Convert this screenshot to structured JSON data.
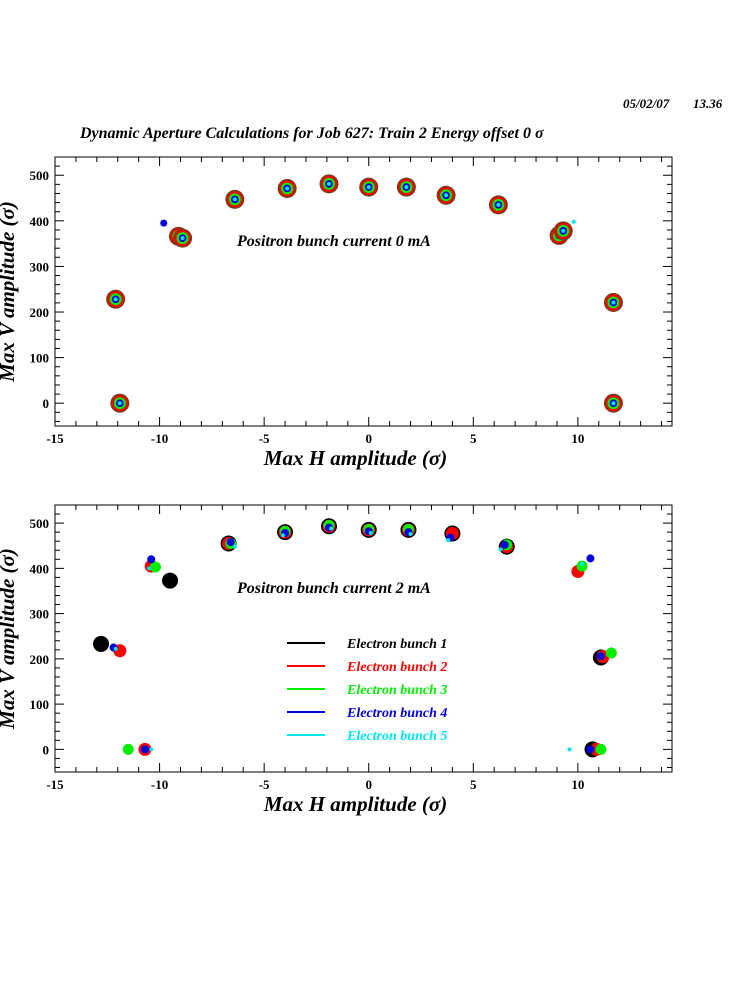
{
  "header": {
    "date": "05/02/07",
    "time": "13.36",
    "title": "Dynamic Aperture Calculations for Job 627:  Train 2   Energy offset  0 σ"
  },
  "colors": {
    "bunch_1": "#000000",
    "bunch_2": "#ff0000",
    "bunch_3": "#00ee00",
    "bunch_4": "#0000dd",
    "bunch_5": "#00e5ee",
    "bunch_halo": "#7a3a16"
  },
  "chart_data": [
    {
      "type": "scatter",
      "note": "Positron bunch current  0 mA",
      "xlabel": "Max H amplitude (σ)",
      "ylabel": "Max V amplitude (σ)",
      "xlim": [
        -15,
        14.5
      ],
      "ylim": [
        -50,
        540
      ],
      "xticks": [
        -15,
        -10,
        -5,
        0,
        5,
        10
      ],
      "yticks": [
        0,
        100,
        200,
        300,
        400,
        500
      ],
      "grid": false,
      "legend": [],
      "series": [
        {
          "bunch": 1,
          "points": [
            [
              -12.1,
              228
            ],
            [
              -11.9,
              0
            ],
            [
              -9.1,
              366
            ],
            [
              -8.9,
              362
            ],
            [
              -6.4,
              447
            ],
            [
              -3.9,
              471
            ],
            [
              -1.9,
              481
            ],
            [
              0.0,
              474
            ],
            [
              1.8,
              474
            ],
            [
              3.7,
              456
            ],
            [
              6.2,
              435
            ],
            [
              9.1,
              368
            ],
            [
              9.3,
              378
            ],
            [
              11.7,
              221
            ],
            [
              11.7,
              0
            ]
          ]
        },
        {
          "bunch": 2,
          "points": [
            [
              -12.1,
              228
            ],
            [
              -11.9,
              0
            ],
            [
              -9.1,
              366
            ],
            [
              -8.9,
              362
            ],
            [
              -6.4,
              447
            ],
            [
              -3.9,
              471
            ],
            [
              -1.9,
              481
            ],
            [
              0.0,
              474
            ],
            [
              1.8,
              474
            ],
            [
              3.7,
              456
            ],
            [
              6.2,
              435
            ],
            [
              9.1,
              368
            ],
            [
              9.3,
              378
            ],
            [
              11.7,
              221
            ],
            [
              11.7,
              0
            ]
          ]
        },
        {
          "bunch": 3,
          "points": [
            [
              -12.1,
              228
            ],
            [
              -11.9,
              0
            ],
            [
              -9.1,
              366
            ],
            [
              -8.9,
              362
            ],
            [
              -6.4,
              447
            ],
            [
              -3.9,
              471
            ],
            [
              -1.9,
              481
            ],
            [
              0.0,
              474
            ],
            [
              1.8,
              474
            ],
            [
              3.7,
              456
            ],
            [
              6.2,
              435
            ],
            [
              9.1,
              368
            ],
            [
              9.3,
              378
            ],
            [
              11.7,
              221
            ],
            [
              11.7,
              0
            ]
          ]
        },
        {
          "bunch": 4,
          "points": [
            [
              -9.8,
              395
            ],
            [
              -12.1,
              226
            ],
            [
              -11.9,
              0
            ],
            [
              -9.0,
              357
            ],
            [
              -6.4,
              442
            ],
            [
              -3.9,
              468
            ],
            [
              -1.9,
              480
            ],
            [
              0.0,
              472
            ],
            [
              1.8,
              471
            ],
            [
              3.7,
              451
            ],
            [
              6.2,
              432
            ],
            [
              9.1,
              364
            ],
            [
              11.7,
              219
            ],
            [
              11.7,
              0
            ]
          ]
        },
        {
          "bunch": 5,
          "points": [
            [
              9.8,
              398
            ],
            [
              -12.1,
              226
            ],
            [
              -11.9,
              0
            ],
            [
              -6.4,
              440
            ],
            [
              -3.9,
              466
            ],
            [
              -1.9,
              478
            ],
            [
              0.0,
              470
            ],
            [
              1.8,
              470
            ],
            [
              3.7,
              450
            ],
            [
              6.2,
              430
            ],
            [
              9.1,
              362
            ],
            [
              11.7,
              218
            ],
            [
              11.7,
              0
            ]
          ]
        }
      ]
    },
    {
      "type": "scatter",
      "note": "Positron bunch current  2 mA",
      "xlabel": "Max H amplitude (σ)",
      "ylabel": "Max V amplitude (σ)",
      "xlim": [
        -15,
        14.5
      ],
      "ylim": [
        -50,
        540
      ],
      "xticks": [
        -15,
        -10,
        -5,
        0,
        5,
        10
      ],
      "yticks": [
        0,
        100,
        200,
        300,
        400,
        500
      ],
      "grid": false,
      "legend": [
        "Electron bunch 1",
        "Electron bunch 2",
        "Electron bunch 3",
        "Electron bunch 4",
        "Electron bunch 5"
      ],
      "series": [
        {
          "name": "Electron bunch 1",
          "points": [
            [
              -12.8,
              233
            ],
            [
              -9.5,
              373
            ],
            [
              -6.7,
              455
            ],
            [
              -4.0,
              480
            ],
            [
              -1.9,
              493
            ],
            [
              0.0,
              485
            ],
            [
              1.9,
              485
            ],
            [
              4.0,
              477
            ],
            [
              6.6,
              448
            ],
            [
              10.7,
              0
            ],
            [
              11.1,
              203
            ]
          ]
        },
        {
          "name": "Electron bunch 2",
          "points": [
            [
              -11.9,
              218
            ],
            [
              -10.7,
              0
            ],
            [
              -10.4,
              405
            ],
            [
              -6.7,
              455
            ],
            [
              -4.0,
              480
            ],
            [
              -1.9,
              493
            ],
            [
              0.0,
              485
            ],
            [
              1.9,
              485
            ],
            [
              4.0,
              477
            ],
            [
              6.6,
              448
            ],
            [
              10.0,
              393
            ],
            [
              10.9,
              0
            ],
            [
              11.2,
              205
            ]
          ]
        },
        {
          "name": "Electron bunch 3",
          "points": [
            [
              -11.5,
              0
            ],
            [
              -10.2,
              403
            ],
            [
              -6.6,
              455
            ],
            [
              -4.0,
              482
            ],
            [
              -1.9,
              495
            ],
            [
              0.0,
              486
            ],
            [
              1.9,
              486
            ],
            [
              6.6,
              452
            ],
            [
              10.2,
              405
            ],
            [
              11.1,
              0
            ],
            [
              11.6,
              213
            ]
          ]
        },
        {
          "name": "Electron bunch 4",
          "points": [
            [
              -10.4,
              420
            ],
            [
              -12.2,
              225
            ],
            [
              -10.7,
              0
            ],
            [
              -6.6,
              458
            ],
            [
              -4.0,
              478
            ],
            [
              -1.9,
              490
            ],
            [
              0.0,
              482
            ],
            [
              1.9,
              480
            ],
            [
              3.9,
              468
            ],
            [
              6.5,
              452
            ],
            [
              10.6,
              422
            ],
            [
              10.6,
              0
            ],
            [
              11.1,
              206
            ]
          ]
        },
        {
          "name": "Electron bunch 5",
          "points": [
            [
              -10.5,
              400
            ],
            [
              -12.1,
              222
            ],
            [
              -10.4,
              0
            ],
            [
              -6.4,
              448
            ],
            [
              -4.1,
              473
            ],
            [
              -1.8,
              488
            ],
            [
              0.1,
              478
            ],
            [
              2.0,
              476
            ],
            [
              3.8,
              462
            ],
            [
              6.3,
              442
            ],
            [
              9.6,
              0
            ],
            [
              10.2,
              410
            ]
          ]
        }
      ]
    }
  ]
}
